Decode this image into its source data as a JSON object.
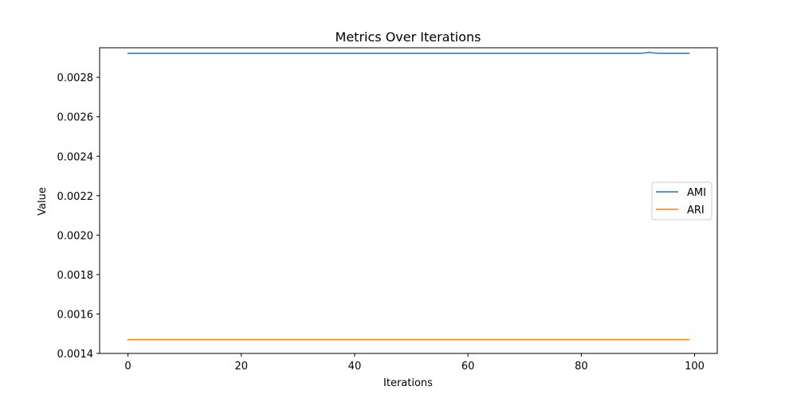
{
  "chart_data": {
    "type": "line",
    "title": "Metrics Over Iterations",
    "xlabel": "Iterations",
    "ylabel": "Value",
    "xlim": [
      -5,
      104
    ],
    "ylim": [
      0.0014,
      0.00295
    ],
    "x_ticks": [
      0,
      20,
      40,
      60,
      80,
      100
    ],
    "x_tick_labels": [
      "0",
      "20",
      "40",
      "60",
      "80",
      "100"
    ],
    "y_ticks": [
      0.0014,
      0.0016,
      0.0018,
      0.002,
      0.0022,
      0.0024,
      0.0026,
      0.0028
    ],
    "y_tick_labels": [
      "0.0014",
      "0.0016",
      "0.0018",
      "0.0020",
      "0.0022",
      "0.0024",
      "0.0026",
      "0.0028"
    ],
    "grid": false,
    "legend_position": "center-right",
    "series": [
      {
        "name": "AMI",
        "color": "#1f77b4",
        "x": [
          0,
          90,
          91,
          92,
          93,
          94,
          99
        ],
        "y": [
          0.002922,
          0.002922,
          0.002923,
          0.002927,
          0.002923,
          0.002922,
          0.002922
        ]
      },
      {
        "name": "ARI",
        "color": "#ff7f0e",
        "x": [
          0,
          99
        ],
        "y": [
          0.00147,
          0.00147
        ]
      }
    ]
  }
}
